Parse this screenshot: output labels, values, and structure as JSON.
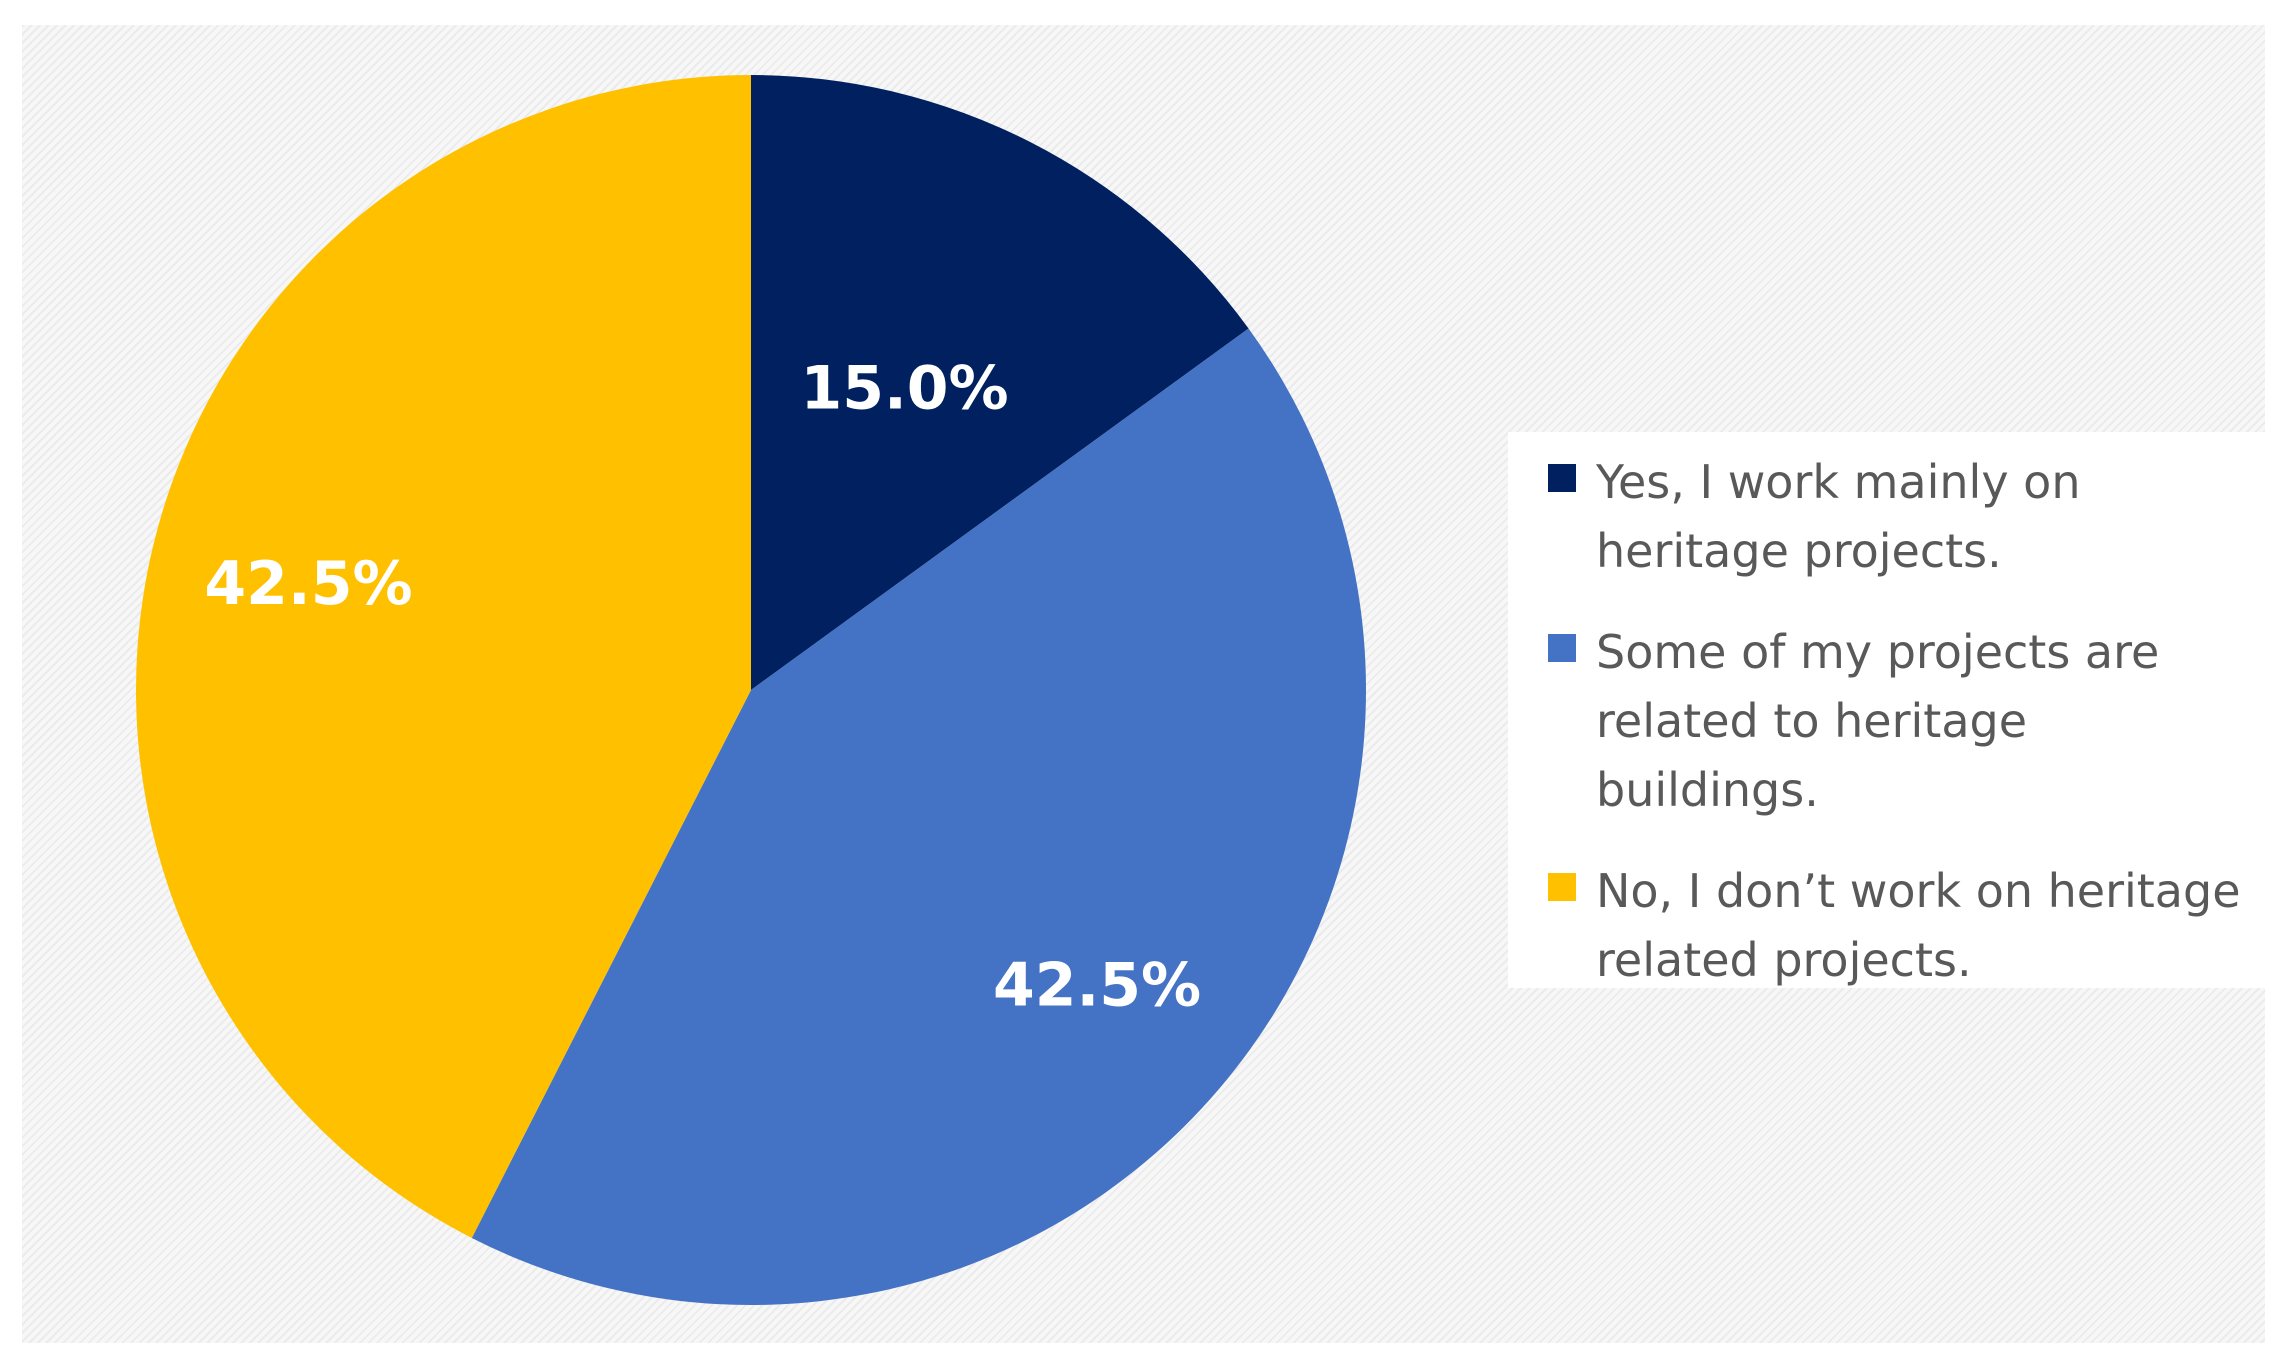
{
  "chart_data": {
    "type": "pie",
    "start_angle_deg": 0,
    "direction": "clockwise",
    "legend_position": "right",
    "slices": [
      {
        "label": "Yes, I work mainly on heritage projects.",
        "value": 15.0,
        "display": "15.0%",
        "color": "#002060"
      },
      {
        "label": "Some of my projects are related to heritage buildings.",
        "value": 42.5,
        "display": "42.5%",
        "color": "#4472c4"
      },
      {
        "label": "No, I don’t work on heritage related projects.",
        "value": 42.5,
        "display": "42.5%",
        "color": "#ffc000"
      }
    ]
  }
}
